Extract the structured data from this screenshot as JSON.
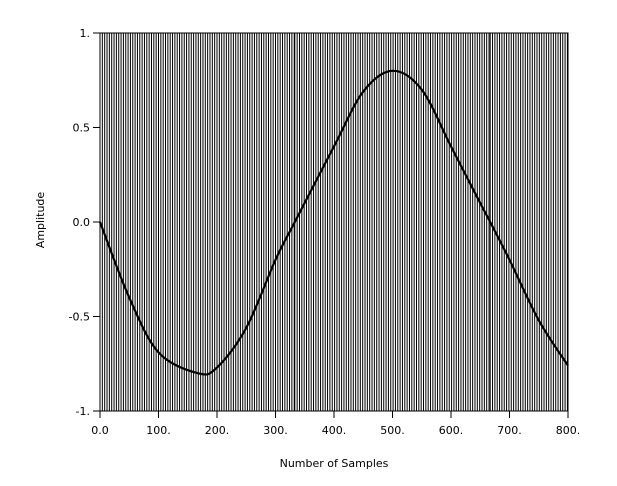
{
  "chart_data": {
    "type": "line",
    "title": "",
    "xlabel": "Number of Samples",
    "ylabel": "Amplitude",
    "xlim": [
      0,
      800
    ],
    "ylim": [
      -1,
      1
    ],
    "x_ticks": [
      0,
      100,
      200,
      300,
      400,
      500,
      600,
      700,
      800
    ],
    "x_tick_labels": [
      "0.0",
      "100.",
      "200.",
      "300.",
      "400.",
      "500.",
      "600.",
      "700.",
      "800."
    ],
    "y_ticks": [
      1,
      0.5,
      0,
      -0.5,
      -1
    ],
    "y_tick_labels": [
      "1.",
      "0.5",
      "0.0",
      "-0.5",
      "-1."
    ],
    "grid": false,
    "series": [
      {
        "kind": "curve",
        "color": "#000000",
        "x": [
          0,
          50,
          100,
          167,
          200,
          250,
          300,
          333,
          400,
          450,
          500,
          550,
          600,
          650,
          667,
          700,
          750,
          800
        ],
        "y": [
          0,
          -0.4,
          -0.69,
          -0.8,
          -0.77,
          -0.56,
          -0.2,
          0.0,
          0.4,
          0.69,
          0.8,
          0.7,
          0.4,
          0.1,
          0.0,
          -0.2,
          -0.52,
          -0.76
        ]
      },
      {
        "kind": "pulse-train",
        "color": "#000000",
        "line_spacing_samples": 4,
        "segments": [
          {
            "x_start": 0,
            "x_end": 333,
            "y_from": 0,
            "y_to": -1
          },
          {
            "x_start": 0,
            "x_end": 333,
            "y_from": 0,
            "y_to": 1
          },
          {
            "x_start": 333,
            "x_end": 667,
            "y_from": 0,
            "y_to": 1
          },
          {
            "x_start": 333,
            "x_end": 667,
            "y_from": 0,
            "y_to": -1
          },
          {
            "x_start": 667,
            "x_end": 800,
            "y_from": 0,
            "y_to": -1
          },
          {
            "x_start": 667,
            "x_end": 800,
            "y_from": 0,
            "y_to": 1
          }
        ]
      }
    ]
  }
}
